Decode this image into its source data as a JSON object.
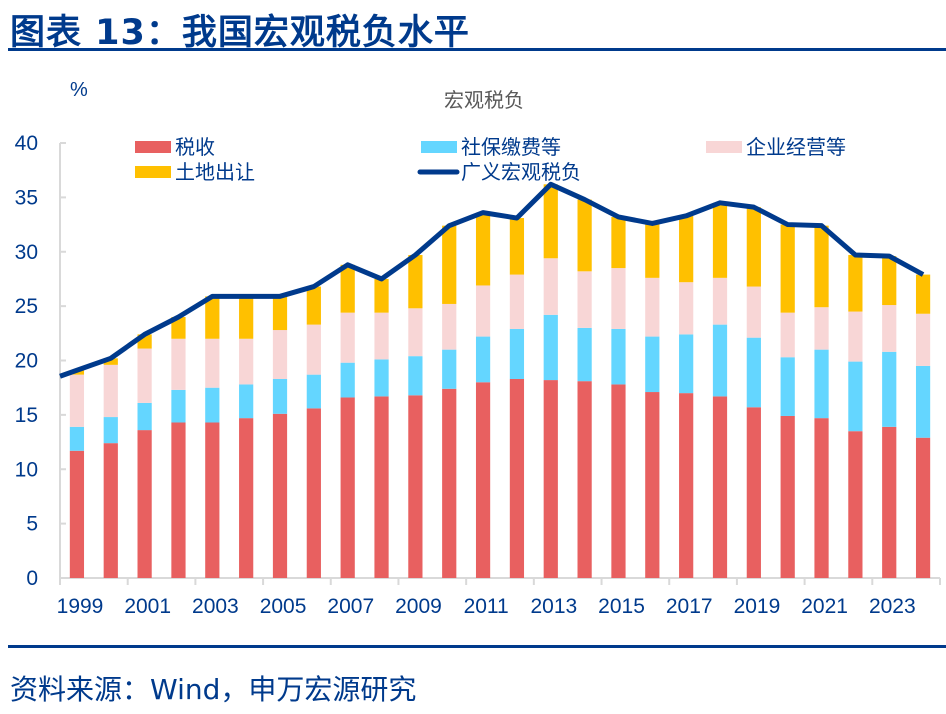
{
  "figure": {
    "title": "图表 13：我国宏观税负水平",
    "source": "资料来源：Wind，申万宏源研究"
  },
  "colors": {
    "tax": "#e86060",
    "social": "#64d6ff",
    "enterprise": "#f8d6d6",
    "land": "#ffc000",
    "line": "#003a8c",
    "text": "#003a8c",
    "axis": "#d9d9d9"
  },
  "chart_data": {
    "type": "bar",
    "stacked": true,
    "title": "宏观税负",
    "xlabel": "",
    "ylabel": "%",
    "ylim": [
      0,
      40
    ],
    "yticks": [
      0,
      5,
      10,
      15,
      20,
      25,
      30,
      35,
      40
    ],
    "x_tick_labels": [
      "1999",
      "2001",
      "2003",
      "2005",
      "2007",
      "2009",
      "2011",
      "2013",
      "2015",
      "2017",
      "2019",
      "2021",
      "2023"
    ],
    "legend_position": "top",
    "categories": [
      "1999",
      "2000",
      "2001",
      "2002",
      "2003",
      "2004",
      "2005",
      "2006",
      "2007",
      "2008",
      "2009",
      "2010",
      "2011",
      "2012",
      "2013",
      "2014",
      "2015",
      "2016",
      "2017",
      "2018",
      "2019",
      "2020",
      "2021",
      "2022",
      "2023",
      "2024"
    ],
    "series": [
      {
        "name": "税收",
        "key": "tax",
        "type": "bar",
        "values": [
          11.7,
          12.4,
          13.6,
          14.3,
          14.3,
          14.7,
          15.1,
          15.6,
          16.6,
          16.7,
          16.8,
          17.4,
          18.0,
          18.3,
          18.2,
          18.1,
          17.8,
          17.1,
          17.0,
          16.7,
          15.7,
          14.9,
          14.7,
          13.5,
          13.9,
          12.9
        ]
      },
      {
        "name": "社保缴费等",
        "key": "social",
        "type": "bar",
        "values": [
          2.2,
          2.4,
          2.5,
          3.0,
          3.2,
          3.1,
          3.2,
          3.1,
          3.2,
          3.4,
          3.6,
          3.6,
          4.2,
          4.6,
          6.0,
          4.9,
          5.1,
          5.1,
          5.4,
          6.6,
          6.4,
          5.4,
          6.3,
          6.4,
          6.9,
          6.6
        ]
      },
      {
        "name": "企业经营等",
        "key": "enterprise",
        "type": "bar",
        "values": [
          4.8,
          4.8,
          5.0,
          4.7,
          4.5,
          4.2,
          4.5,
          4.6,
          4.6,
          4.3,
          4.4,
          4.2,
          4.7,
          5.0,
          5.2,
          5.2,
          5.6,
          5.4,
          4.8,
          4.3,
          4.7,
          4.1,
          3.9,
          4.6,
          4.3,
          4.8
        ]
      },
      {
        "name": "土地出让",
        "key": "land",
        "type": "bar",
        "values": [
          0.4,
          0.6,
          1.3,
          2.0,
          3.9,
          3.9,
          3.1,
          3.5,
          4.4,
          3.1,
          4.9,
          7.2,
          6.7,
          5.2,
          6.8,
          6.6,
          4.7,
          5.0,
          6.1,
          6.9,
          7.3,
          8.1,
          7.5,
          5.2,
          4.5,
          3.6
        ]
      },
      {
        "name": "广义宏观税负",
        "key": "line",
        "type": "line",
        "values": [
          19.1,
          20.2,
          22.4,
          24.0,
          25.9,
          25.9,
          25.9,
          26.8,
          28.8,
          27.5,
          29.7,
          32.4,
          33.6,
          33.1,
          36.2,
          34.8,
          33.2,
          32.6,
          33.3,
          34.5,
          34.1,
          32.5,
          32.4,
          29.7,
          29.6,
          27.9
        ]
      }
    ]
  }
}
